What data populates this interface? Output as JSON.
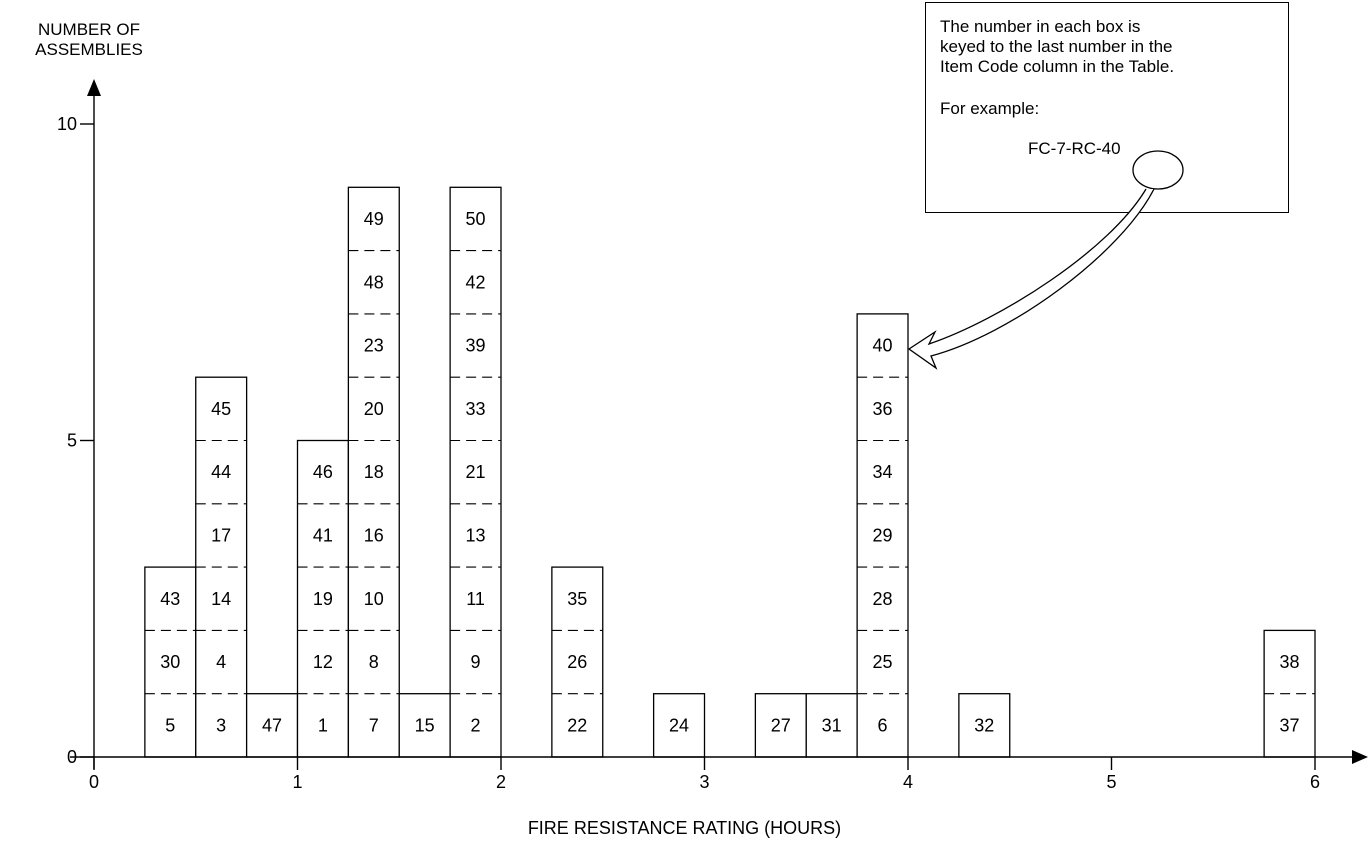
{
  "chart_data": {
    "type": "bar",
    "ylabel": "NUMBER OF ASSEMBLIES",
    "xlabel": "FIRE RESISTANCE RATING (HOURS)",
    "xlim": [
      0,
      6
    ],
    "ylim": [
      0,
      10
    ],
    "xticks": [
      "0",
      "1",
      "2",
      "3",
      "4",
      "5",
      "6"
    ],
    "yticks": [
      "0",
      "5",
      "10"
    ],
    "bin_width_hours": 0.25,
    "stacks": [
      {
        "x": 0.375,
        "items": [
          "5",
          "30",
          "43"
        ]
      },
      {
        "x": 0.625,
        "items": [
          "3",
          "4",
          "14",
          "17",
          "44",
          "45"
        ]
      },
      {
        "x": 0.875,
        "items": [
          "47"
        ]
      },
      {
        "x": 1.125,
        "items": [
          "1",
          "12",
          "19",
          "41",
          "46"
        ]
      },
      {
        "x": 1.375,
        "items": [
          "7",
          "8",
          "10",
          "16",
          "18",
          "20",
          "23",
          "48",
          "49"
        ]
      },
      {
        "x": 1.625,
        "items": [
          "15"
        ]
      },
      {
        "x": 1.875,
        "items": [
          "2",
          "9",
          "11",
          "13",
          "21",
          "33",
          "39",
          "42",
          "50"
        ]
      },
      {
        "x": 2.375,
        "items": [
          "22",
          "26",
          "35"
        ]
      },
      {
        "x": 2.875,
        "items": [
          "24"
        ]
      },
      {
        "x": 3.375,
        "items": [
          "27"
        ]
      },
      {
        "x": 3.625,
        "items": [
          "31"
        ]
      },
      {
        "x": 3.875,
        "items": [
          "6",
          "25",
          "28",
          "29",
          "34",
          "36",
          "40"
        ]
      },
      {
        "x": 4.375,
        "items": [
          "32"
        ]
      },
      {
        "x": 5.875,
        "items": [
          "37",
          "38"
        ]
      }
    ]
  },
  "note": {
    "line1": "The number in each box is",
    "line2": "keyed to the last number in the",
    "line3": "Item Code column in the Table.",
    "example_label": "For example:",
    "example_code": "FC-7-RC-40"
  },
  "callout_target": "40"
}
